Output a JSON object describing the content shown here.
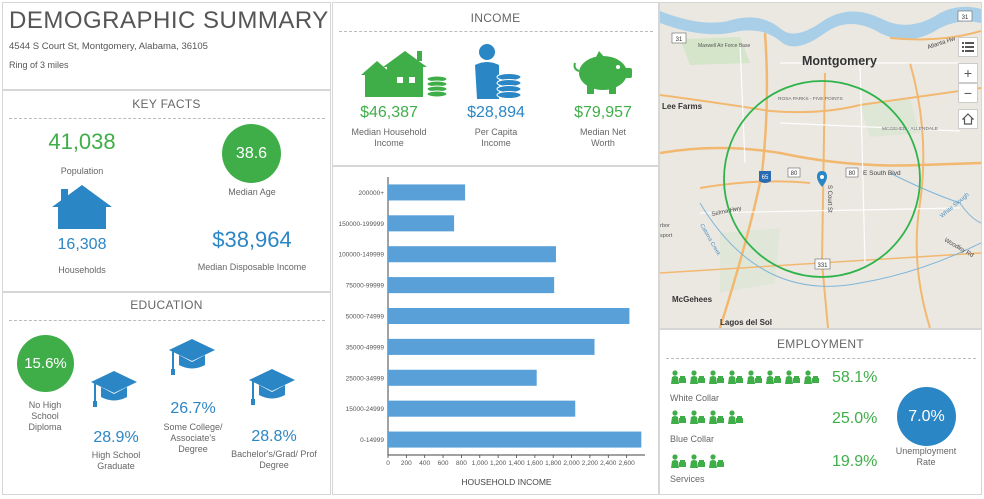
{
  "summary": {
    "title": "DEMOGRAPHIC SUMMARY",
    "address": "4544 S Court St, Montgomery, Alabama, 36105",
    "ring": "Ring of 3 miles"
  },
  "key_facts": {
    "title": "KEY FACTS",
    "population_value": "41,038",
    "population_label": "Population",
    "median_age_value": "38.6",
    "median_age_label": "Median Age",
    "households_value": "16,308",
    "households_label": "Households",
    "disposable_income_value": "$38,964",
    "disposable_income_label": "Median Disposable Income"
  },
  "education": {
    "title": "EDUCATION",
    "no_hs_value": "15.6%",
    "no_hs_label": "No High School Diploma",
    "hs_value": "28.9%",
    "hs_label": "High School Graduate",
    "college_value": "26.7%",
    "college_label": "Some College/ Associate's Degree",
    "bachelor_value": "28.8%",
    "bachelor_label": "Bachelor's/Grad/ Prof Degree"
  },
  "income": {
    "title": "INCOME",
    "household_value": "$46,387",
    "household_label": "Median Household Income",
    "per_capita_value": "$28,894",
    "per_capita_label": "Per Capita Income",
    "net_worth_value": "$79,957",
    "net_worth_label": "Median Net Worth"
  },
  "chart_data": {
    "type": "bar",
    "orientation": "horizontal",
    "title": "",
    "xlabel": "HOUSEHOLD INCOME",
    "ylabel": "",
    "categories": [
      "200000+",
      "150000-199999",
      "100000-149999",
      "75000-99999",
      "50000-74999",
      "35000-49999",
      "25000-34999",
      "15000-24999",
      "0-14999"
    ],
    "values": [
      840,
      720,
      1830,
      1810,
      2630,
      2250,
      1620,
      2040,
      2760
    ],
    "xlim": [
      0,
      2800
    ],
    "xticks": [
      "0",
      "200",
      "400",
      "600",
      "800",
      "1,000",
      "1,200",
      "1,400",
      "1,600",
      "1,800",
      "2,000",
      "2,200",
      "2,400",
      "2,600"
    ],
    "bar_color": "#5aa0d8"
  },
  "map": {
    "places": {
      "montgomery": "Montgomery",
      "lee_farms": "Lee Farms",
      "mcgehees": "McGehees",
      "lagos": "Lagos del Sol",
      "maxwell": "Maxwell Air Force Base",
      "rosa_parks": "ROSA PARKS - FIVE POINTS",
      "mcgehee_allendale": "MCGEHEE - ALLENDALE",
      "e_south_blvd": "E South Blvd",
      "selma_hwy": "Selma Hwy",
      "s_court_st": "S Court St",
      "atlanta_hwy": "Atlanta Hw",
      "white_slough": "White Slough",
      "woodley_rd": "Woodley Rd",
      "catoma": "Catoma Creek",
      "harbor": "rbor",
      "sport": "sport"
    },
    "shields": {
      "i65": "65",
      "r80a": "80",
      "r80b": "80",
      "r331": "331",
      "r31": "31",
      "r31b": "31"
    },
    "controls": {
      "zoom_in": "+",
      "zoom_out": "−"
    }
  },
  "employment": {
    "title": "EMPLOYMENT",
    "white_collar_value": "58.1%",
    "white_collar_label": "White Collar",
    "blue_collar_value": "25.0%",
    "blue_collar_label": "Blue Collar",
    "services_value": "19.9%",
    "services_label": "Services",
    "unemployment_value": "7.0%",
    "unemployment_label": "Unemployment Rate"
  },
  "colors": {
    "green": "#3fae49",
    "blue": "#2b86c5",
    "bar": "#5aa0d8"
  }
}
